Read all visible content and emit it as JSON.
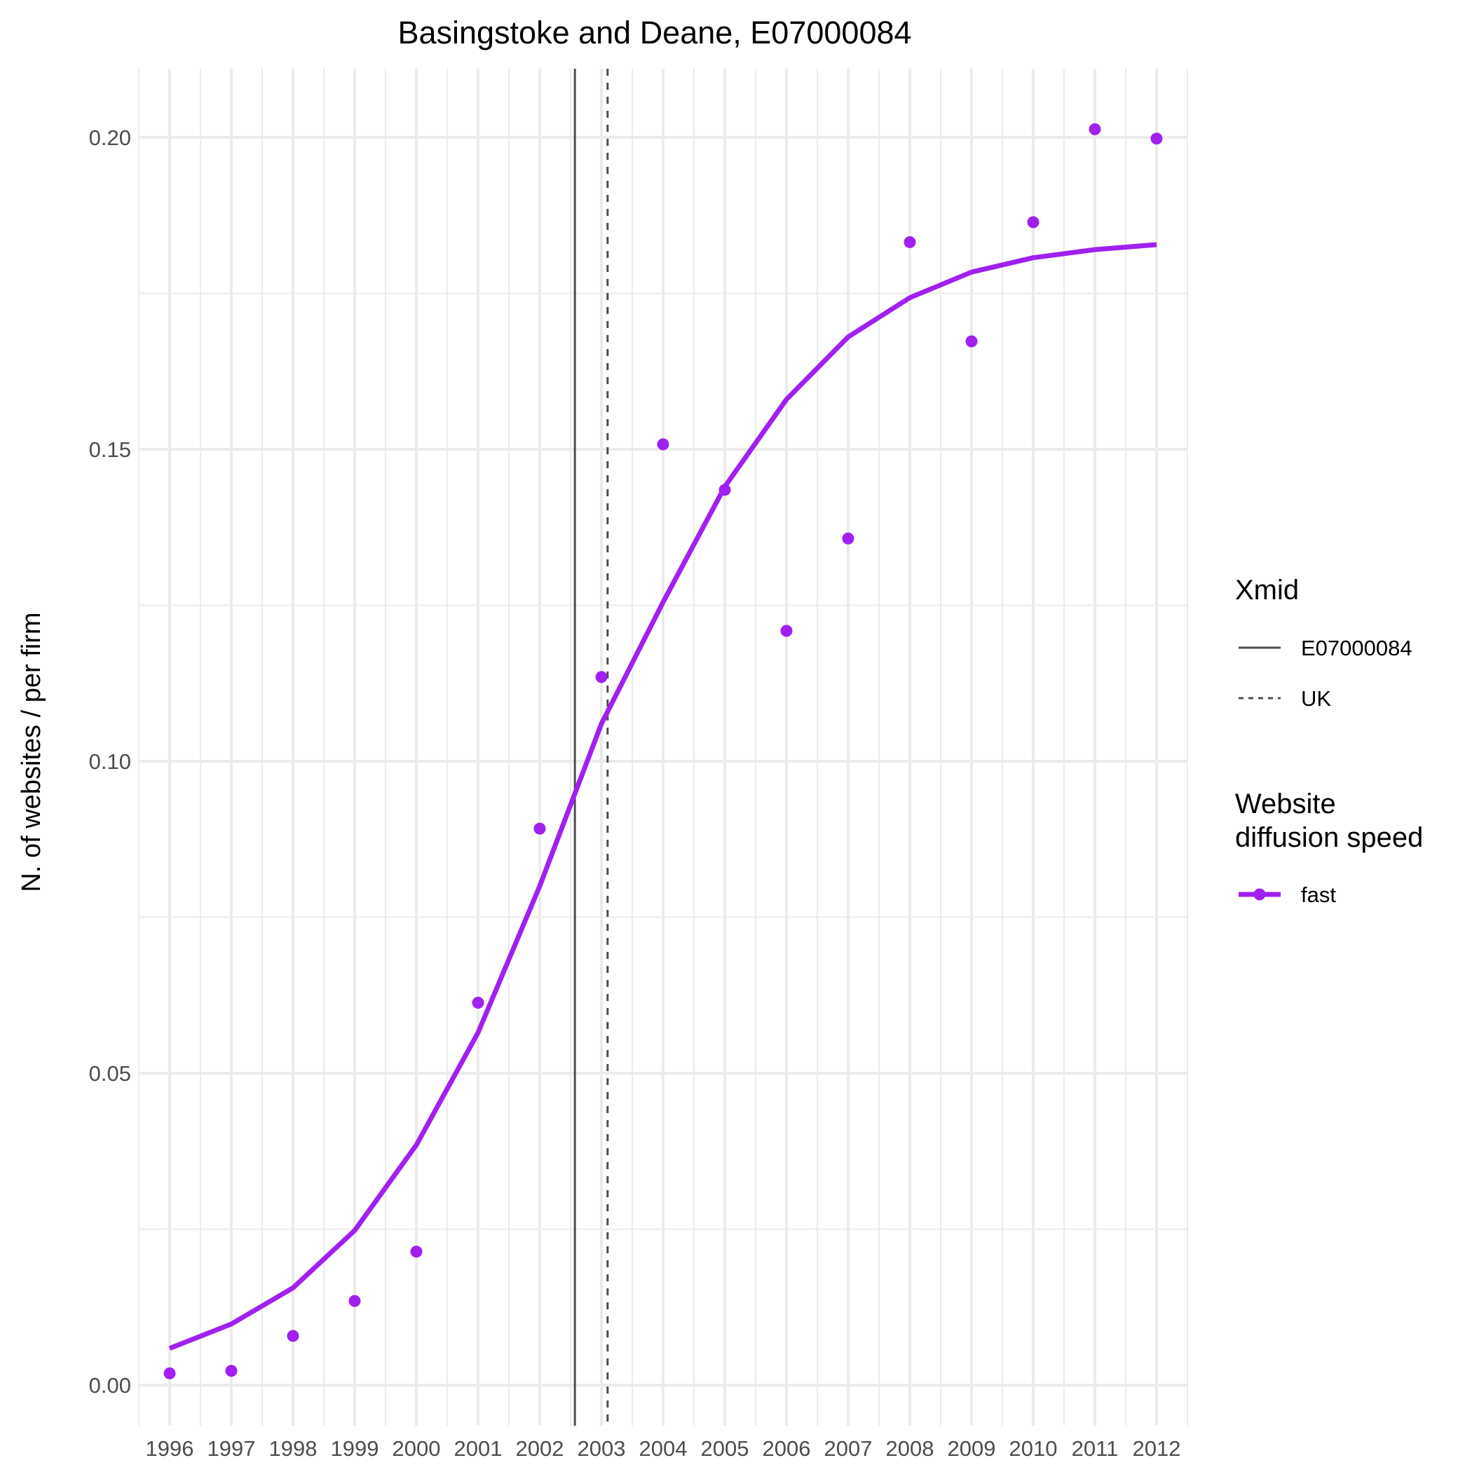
{
  "chart_data": {
    "type": "line",
    "title": "Basingstoke and Deane, E07000084",
    "xlabel": "",
    "ylabel": "N. of websites / per firm",
    "x": [
      1996,
      1997,
      1998,
      1999,
      2000,
      2001,
      2002,
      2003,
      2004,
      2005,
      2006,
      2007,
      2008,
      2009,
      2010,
      2011,
      2012
    ],
    "xlim": [
      1995.5,
      2012.5
    ],
    "ylim": [
      -0.0065,
      0.211
    ],
    "y_ticks": [
      0.0,
      0.05,
      0.1,
      0.15,
      0.2
    ],
    "y_tick_labels": [
      "0.00",
      "0.05",
      "0.10",
      "0.15",
      "0.20"
    ],
    "grid": true,
    "series": [
      {
        "name": "fast",
        "color": "#a020f0",
        "points": [
          0.0019,
          0.0023,
          0.0079,
          0.0135,
          0.0214,
          0.0613,
          0.0892,
          0.1135,
          0.1508,
          0.1435,
          0.1209,
          0.1357,
          0.1832,
          0.1673,
          0.1864,
          0.2013,
          0.1998
        ],
        "fitted": [
          0.0059,
          0.0098,
          0.0156,
          0.0248,
          0.0385,
          0.0565,
          0.08,
          0.106,
          0.1255,
          0.144,
          0.158,
          0.168,
          0.1743,
          0.1784,
          0.1807,
          0.182,
          0.1828
        ]
      }
    ],
    "reference_lines": [
      {
        "name": "E07000084",
        "x": 2002.57,
        "style": "solid",
        "color": "#4d4d4d"
      },
      {
        "name": "UK",
        "x": 2003.1,
        "style": "dashed",
        "color": "#4d4d4d"
      }
    ],
    "legends": [
      {
        "title": "Xmid",
        "entries": [
          "E07000084",
          "UK"
        ]
      },
      {
        "title": "Website\ndiffusion speed",
        "entries": [
          "fast"
        ]
      }
    ],
    "legend_position": "right"
  }
}
